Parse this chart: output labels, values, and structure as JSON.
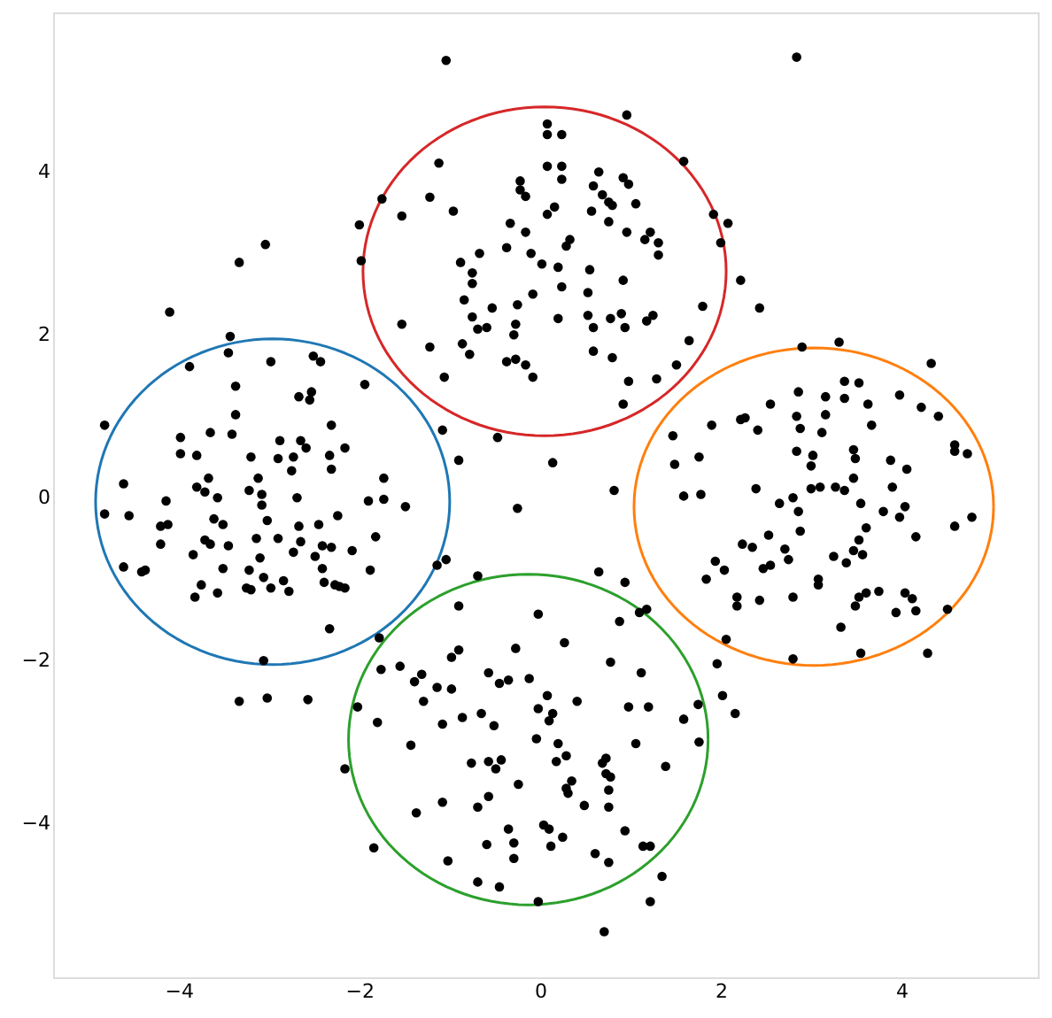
{
  "chart_data": {
    "type": "scatter",
    "xlim": [
      -5.39,
      5.51
    ],
    "ylim": [
      -5.89,
      5.96
    ],
    "xticks": [
      -4,
      -2,
      0,
      2,
      4
    ],
    "yticks": [
      -4,
      -2,
      0,
      2,
      4
    ],
    "grid": false,
    "marker": "circle",
    "series": [
      {
        "color": "#000000",
        "x": [
          -1.04,
          0.08,
          0.08,
          0.08,
          -1.12,
          -1.75,
          -1.22,
          -0.96,
          -0.22,
          -0.22,
          -0.16,
          -0.33,
          -0.16,
          0.08,
          -0.37,
          -0.1,
          -0.88,
          -0.67,
          -0.75,
          -0.75,
          -0.84,
          -0.53,
          -0.25,
          -0.08,
          -0.75,
          -0.69,
          -0.59,
          -0.27,
          -0.29,
          -0.86,
          -0.78,
          -1.22,
          -1.53,
          -0.37,
          -0.27,
          -0.16,
          -0.08,
          -1.06,
          -2.0,
          -1.98,
          -1.53,
          0.02,
          2.84,
          0.96,
          0.24,
          0.24,
          0.24,
          0.65,
          0.59,
          0.92,
          0.98,
          0.69,
          0.76,
          0.8,
          1.06,
          0.16,
          0.57,
          0.76,
          1.59,
          1.92,
          2.08,
          2.0,
          0.96,
          1.22,
          1.16,
          1.31,
          1.31,
          0.33,
          0.29,
          0.2,
          0.55,
          0.92,
          0.24,
          0.53,
          2.22,
          1.8,
          2.43,
          0.53,
          0.78,
          0.9,
          1.18,
          1.25,
          0.2,
          0.59,
          0.94,
          1.65,
          0.59,
          0.8,
          1.51,
          0.98,
          1.29,
          0.92,
          0.14,
          0.82
        ],
        "values": [
          5.37,
          4.59,
          4.46,
          4.07,
          4.11,
          3.67,
          3.69,
          3.52,
          3.89,
          3.78,
          3.7,
          3.37,
          3.26,
          3.48,
          3.07,
          3.0,
          2.89,
          3.0,
          2.76,
          2.63,
          2.43,
          2.33,
          2.37,
          2.5,
          2.22,
          2.07,
          2.09,
          2.13,
          2.0,
          1.89,
          1.76,
          1.85,
          2.13,
          1.67,
          1.7,
          1.63,
          1.48,
          1.48,
          3.35,
          2.91,
          3.46,
          2.87,
          5.41,
          4.7,
          4.46,
          4.07,
          3.91,
          4.0,
          3.83,
          3.93,
          3.85,
          3.72,
          3.63,
          3.59,
          3.61,
          3.57,
          3.52,
          3.39,
          4.13,
          3.48,
          3.37,
          3.13,
          3.26,
          3.26,
          3.17,
          3.13,
          2.98,
          3.17,
          3.09,
          2.83,
          2.8,
          2.67,
          2.59,
          2.52,
          2.67,
          2.35,
          2.33,
          2.24,
          2.2,
          2.26,
          2.17,
          2.24,
          2.2,
          2.09,
          2.09,
          1.93,
          1.8,
          1.72,
          1.63,
          1.43,
          1.46,
          1.15,
          0.43,
          0.09
        ]
      },
      {
        "color": "#000000",
        "x": [
          -3.04,
          -3.33,
          -4.1,
          -3.43,
          -3.45,
          -3.88,
          -2.98,
          -2.51,
          -2.43,
          -1.94,
          -3.37,
          -2.67,
          -2.53,
          -2.55,
          -4.82,
          -3.37,
          -3.65,
          -3.41,
          -3.98,
          -3.98,
          -3.8,
          -3.2,
          -2.88,
          -2.65,
          -2.59,
          -2.73,
          -2.31,
          -2.33,
          -2.16,
          -2.9,
          -2.75,
          -2.31,
          -4.61,
          -3.67,
          -3.12,
          -3.8,
          -3.71,
          -3.22,
          -3.08,
          -1.73,
          -1.08,
          -0.9,
          -0.47,
          -4.82,
          -4.55,
          -4.14,
          -4.2,
          -4.12,
          -4.2,
          -4.61,
          -4.41,
          -4.37,
          -3.57,
          -3.08,
          -2.69,
          -3.61,
          -3.51,
          -3.02,
          -2.67,
          -2.45,
          -2.24,
          -1.9,
          -1.73,
          -1.49,
          -1.82,
          -3.71,
          -3.65,
          -3.45,
          -3.14,
          -2.9,
          -2.65,
          -2.73,
          -2.49,
          -2.41,
          -2.31,
          -2.08,
          -3.84,
          -3.51,
          -3.22,
          -3.1,
          -3.06,
          -2.84,
          -2.41,
          -1.88,
          -3.75,
          -3.82,
          -3.57,
          -3.25,
          -3.2,
          -2.98,
          -2.78,
          -2.39,
          -2.27,
          -2.22,
          -2.16,
          -2.33,
          -1.14,
          -1.04,
          -0.25,
          -1.78,
          -3.06,
          -3.33,
          -3.02,
          -2.57,
          -2.02,
          -2.16,
          -1.84
        ],
        "values": [
          3.11,
          2.89,
          2.28,
          1.98,
          1.78,
          1.61,
          1.67,
          1.74,
          1.67,
          1.39,
          1.37,
          1.24,
          1.3,
          1.2,
          0.89,
          1.02,
          0.8,
          0.78,
          0.74,
          0.54,
          0.52,
          0.5,
          0.7,
          0.7,
          0.61,
          0.5,
          0.89,
          0.52,
          0.61,
          0.48,
          0.33,
          0.35,
          0.17,
          0.24,
          0.24,
          0.13,
          0.07,
          0.09,
          0.04,
          0.24,
          0.83,
          0.46,
          0.74,
          -0.2,
          -0.22,
          -0.04,
          -0.35,
          -0.33,
          -0.57,
          -0.85,
          -0.91,
          -0.89,
          0.0,
          -0.09,
          0.0,
          -0.26,
          -0.33,
          -0.28,
          -0.35,
          -0.33,
          -0.22,
          -0.04,
          -0.02,
          -0.11,
          -0.48,
          -0.52,
          -0.57,
          -0.59,
          -0.5,
          -0.5,
          -0.54,
          -0.67,
          -0.72,
          -0.59,
          -0.61,
          -0.65,
          -0.7,
          -0.87,
          -0.89,
          -0.74,
          -0.98,
          -1.02,
          -0.87,
          -0.89,
          -1.07,
          -1.22,
          -1.17,
          -1.11,
          -1.13,
          -1.11,
          -1.15,
          -1.04,
          -1.07,
          -1.09,
          -1.11,
          -1.61,
          -0.83,
          -0.76,
          -0.13,
          -1.72,
          -2.0,
          -2.5,
          -2.46,
          -2.48,
          -2.57,
          -3.33,
          -4.3
        ]
      },
      {
        "color": "#000000",
        "x": [
          -0.69,
          -0.9,
          -0.02,
          -0.9,
          -0.98,
          -0.27,
          -1.76,
          -1.55,
          -1.39,
          -1.31,
          -1.14,
          -0.98,
          -0.57,
          -0.45,
          -0.35,
          -0.12,
          -1.29,
          -1.8,
          -1.08,
          -0.86,
          -0.65,
          -0.51,
          -0.02,
          -0.04,
          -1.43,
          -0.76,
          -0.57,
          -0.49,
          -0.43,
          -0.24,
          -1.37,
          -1.08,
          -0.69,
          -0.57,
          -0.35,
          -0.59,
          -0.29,
          -0.29,
          -1.02,
          -0.69,
          -0.45,
          -0.02,
          0.27,
          0.65,
          0.94,
          0.88,
          1.1,
          1.18,
          0.78,
          1.12,
          0.08,
          0.14,
          0.41,
          0.1,
          0.98,
          1.2,
          1.59,
          1.75,
          0.2,
          0.29,
          0.18,
          1.06,
          1.76,
          0.73,
          0.69,
          0.73,
          0.78,
          0.35,
          0.29,
          0.31,
          0.76,
          1.39,
          0.49,
          0.76,
          0.04,
          0.1,
          0.25,
          0.12,
          0.94,
          1.14,
          1.22,
          0.61,
          0.76,
          1.35,
          1.22,
          0.71,
          1.96,
          2.02,
          2.16
        ],
        "values": [
          -0.96,
          -1.33,
          -1.43,
          -1.87,
          -1.96,
          -1.85,
          -2.11,
          -2.07,
          -2.26,
          -2.17,
          -2.33,
          -2.35,
          -2.15,
          -2.28,
          -2.24,
          -2.22,
          -2.5,
          -2.76,
          -2.78,
          -2.7,
          -2.65,
          -2.8,
          -2.59,
          -2.96,
          -3.04,
          -3.26,
          -3.24,
          -3.33,
          -3.22,
          -3.52,
          -3.87,
          -3.74,
          -3.8,
          -3.67,
          -4.07,
          -4.26,
          -4.24,
          -4.43,
          -4.46,
          -4.72,
          -4.78,
          -4.96,
          -1.78,
          -0.91,
          -1.04,
          -1.52,
          -1.41,
          -1.37,
          -2.02,
          -2.15,
          -2.43,
          -2.65,
          -2.5,
          -2.74,
          -2.57,
          -2.57,
          -2.72,
          -2.54,
          -3.02,
          -3.17,
          -3.24,
          -3.02,
          -3.0,
          -3.2,
          -3.26,
          -3.39,
          -3.43,
          -3.48,
          -3.57,
          -3.63,
          -3.59,
          -3.3,
          -3.78,
          -3.8,
          -4.02,
          -4.07,
          -4.17,
          -4.28,
          -4.09,
          -4.28,
          -4.28,
          -4.37,
          -4.48,
          -4.65,
          -4.96,
          -5.33,
          -2.04,
          -2.43,
          -2.65
        ]
      },
      {
        "color": "#000000",
        "x": [
          2.9,
          3.31,
          4.33,
          2.86,
          3.16,
          3.37,
          3.53,
          3.37,
          3.63,
          3.98,
          4.22,
          4.41,
          2.55,
          2.22,
          2.27,
          1.9,
          2.41,
          2.84,
          3.16,
          2.88,
          3.12,
          3.67,
          1.47,
          1.76,
          1.49,
          2.84,
          3.02,
          3.0,
          3.47,
          3.49,
          3.88,
          4.06,
          4.59,
          4.59,
          4.73,
          3.47,
          2.39,
          3.0,
          3.1,
          3.27,
          3.37,
          3.9,
          1.59,
          1.78,
          2.65,
          2.8,
          2.86,
          3.55,
          3.8,
          3.98,
          4.04,
          3.61,
          4.16,
          4.59,
          4.78,
          2.53,
          2.88,
          2.24,
          2.35,
          2.71,
          2.75,
          3.53,
          3.47,
          3.57,
          3.25,
          3.39,
          1.94,
          2.04,
          2.47,
          2.55,
          1.84,
          3.08,
          3.08,
          2.18,
          2.18,
          2.43,
          2.8,
          3.53,
          3.61,
          3.75,
          3.49,
          4.04,
          4.12,
          3.94,
          4.16,
          4.51,
          3.33,
          2.06,
          2.8,
          3.55,
          4.29
        ],
        "values": [
          1.85,
          1.91,
          1.65,
          1.3,
          1.24,
          1.43,
          1.41,
          1.22,
          1.15,
          1.26,
          1.11,
          1.0,
          1.15,
          0.96,
          0.98,
          0.89,
          0.83,
          1.0,
          1.02,
          0.85,
          0.8,
          0.89,
          0.76,
          0.5,
          0.41,
          0.57,
          0.52,
          0.39,
          0.59,
          0.48,
          0.46,
          0.35,
          0.65,
          0.57,
          0.54,
          0.24,
          0.11,
          0.11,
          0.13,
          0.13,
          0.09,
          0.13,
          0.02,
          0.04,
          -0.07,
          0.0,
          -0.17,
          -0.07,
          -0.17,
          -0.24,
          -0.11,
          -0.37,
          -0.48,
          -0.35,
          -0.24,
          -0.46,
          -0.41,
          -0.57,
          -0.61,
          -0.63,
          -0.76,
          -0.52,
          -0.65,
          -0.7,
          -0.72,
          -0.8,
          -0.78,
          -0.89,
          -0.87,
          -0.83,
          -1.0,
          -1.0,
          -1.07,
          -1.22,
          -1.33,
          -1.26,
          -1.22,
          -1.22,
          -1.17,
          -1.15,
          -1.33,
          -1.17,
          -1.24,
          -1.41,
          -1.39,
          -1.37,
          -1.59,
          -1.74,
          -1.98,
          -1.91,
          -1.91
        ]
      }
    ]
  }
}
